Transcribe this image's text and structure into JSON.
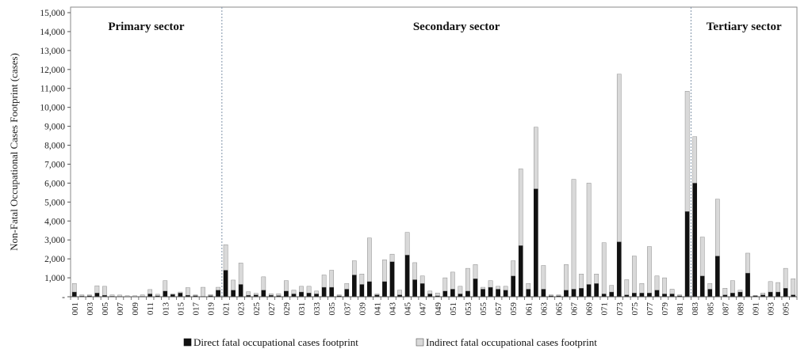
{
  "chart_data": {
    "type": "bar",
    "stacked": true,
    "ylabel": "Non-Fatal Occupational Cases Footprint (cases)",
    "ylim": [
      0,
      15000
    ],
    "yticks": [
      0,
      1000,
      2000,
      3000,
      4000,
      5000,
      6000,
      7000,
      8000,
      9000,
      10000,
      11000,
      12000,
      13000,
      14000,
      15000
    ],
    "ytick_labels": [
      "-",
      "1,000",
      "2,000",
      "3,000",
      "4,000",
      "5,000",
      "6,000",
      "7,000",
      "8,000",
      "9,000",
      "10,000",
      "11,000",
      "12,000",
      "13,000",
      "14,000",
      "15,000"
    ],
    "categories": [
      "001",
      "002",
      "003",
      "004",
      "005",
      "006",
      "007",
      "008",
      "009",
      "010",
      "011",
      "012",
      "013",
      "014",
      "015",
      "016",
      "017",
      "018",
      "019",
      "020",
      "021",
      "022",
      "023",
      "024",
      "025",
      "026",
      "027",
      "028",
      "029",
      "030",
      "031",
      "032",
      "033",
      "034",
      "035",
      "036",
      "037",
      "038",
      "039",
      "040",
      "041",
      "042",
      "043",
      "044",
      "045",
      "046",
      "047",
      "048",
      "049",
      "050",
      "051",
      "052",
      "053",
      "054",
      "055",
      "056",
      "057",
      "058",
      "059",
      "060",
      "061",
      "062",
      "063",
      "064",
      "065",
      "066",
      "067",
      "068",
      "069",
      "070",
      "071",
      "072",
      "073",
      "074",
      "075",
      "076",
      "077",
      "078",
      "079",
      "080",
      "081",
      "082",
      "083",
      "084",
      "085",
      "086",
      "087",
      "088",
      "089",
      "090",
      "091",
      "092",
      "093",
      "094",
      "095",
      "096"
    ],
    "x_tick_labels": [
      "001",
      "003",
      "005",
      "007",
      "009",
      "011",
      "013",
      "015",
      "017",
      "019",
      "021",
      "023",
      "025",
      "027",
      "029",
      "031",
      "033",
      "035",
      "037",
      "039",
      "041",
      "043",
      "045",
      "047",
      "049",
      "051",
      "053",
      "055",
      "057",
      "059",
      "061",
      "063",
      "065",
      "067",
      "069",
      "071",
      "073",
      "075",
      "077",
      "079",
      "081",
      "083",
      "085",
      "087",
      "089",
      "091",
      "093",
      "095"
    ],
    "series": [
      {
        "name": "Direct fatal occupational cases footprint",
        "color": "#111111",
        "values": [
          250,
          40,
          50,
          200,
          80,
          30,
          20,
          10,
          10,
          20,
          150,
          50,
          300,
          120,
          200,
          80,
          60,
          20,
          60,
          350,
          1400,
          350,
          650,
          80,
          100,
          350,
          80,
          60,
          300,
          150,
          250,
          200,
          150,
          500,
          500,
          50,
          400,
          1150,
          650,
          800,
          100,
          800,
          1850,
          100,
          2200,
          900,
          700,
          150,
          50,
          300,
          400,
          150,
          300,
          950,
          400,
          500,
          400,
          350,
          1100,
          2700,
          400,
          5700,
          400,
          50,
          50,
          350,
          400,
          450,
          650,
          700,
          150,
          250,
          2900,
          100,
          200,
          200,
          200,
          350,
          150,
          150,
          50,
          4500,
          6000,
          1100,
          400,
          2150,
          100,
          200,
          250,
          1250,
          50,
          100,
          250,
          250,
          450,
          100
        ]
      },
      {
        "name": "Indirect fatal occupational cases footprint",
        "color": "#d9d9d9",
        "values": [
          450,
          60,
          50,
          380,
          470,
          70,
          70,
          40,
          40,
          80,
          230,
          80,
          550,
          30,
          50,
          400,
          40,
          480,
          60,
          150,
          1350,
          530,
          1130,
          180,
          80,
          700,
          80,
          100,
          550,
          200,
          300,
          350,
          150,
          650,
          900,
          50,
          300,
          750,
          550,
          2300,
          50,
          1150,
          400,
          250,
          1200,
          900,
          400,
          150,
          150,
          700,
          900,
          400,
          1200,
          750,
          100,
          350,
          150,
          200,
          800,
          4050,
          300,
          3250,
          1250,
          50,
          50,
          1350,
          5800,
          750,
          5350,
          500,
          2700,
          350,
          8850,
          800,
          1950,
          500,
          2450,
          750,
          850,
          250,
          50,
          6350,
          2450,
          2050,
          300,
          3000,
          350,
          650,
          100,
          1050,
          0,
          100,
          550,
          500,
          1050,
          850
        ]
      }
    ],
    "sectors": [
      {
        "label": "Primary sector",
        "start": 0,
        "end": 19
      },
      {
        "label": "Secondary sector",
        "start": 20,
        "end": 81
      },
      {
        "label": "Tertiary sector",
        "start": 82,
        "end": 95
      }
    ],
    "legend_position": "bottom",
    "grid": false
  }
}
